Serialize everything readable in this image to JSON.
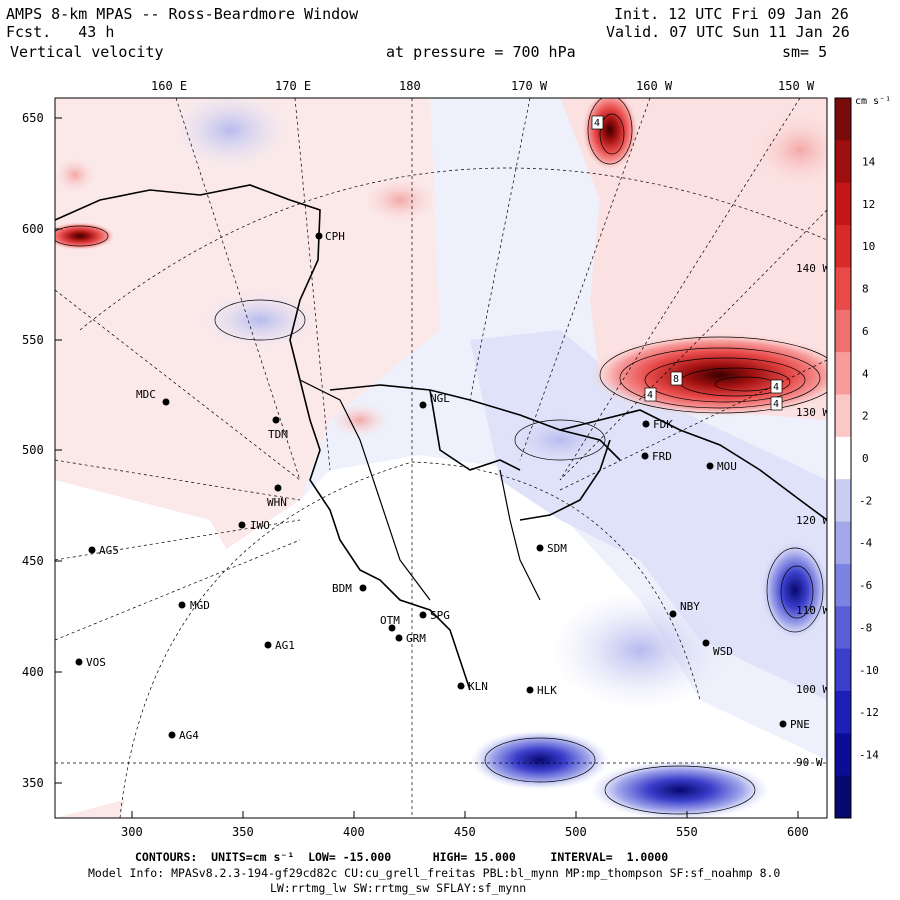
{
  "header": {
    "title": "AMPS 8-km MPAS -- Ross-Beardmore Window",
    "fcst_label": "Fcst.",
    "fcst_value": "43 h",
    "field": "Vertical velocity",
    "init": "Init. 12 UTC Fri 09 Jan 26",
    "valid": "Valid. 07 UTC Sun 11 Jan 26",
    "pressure_label": "at pressure =",
    "pressure_value": "700 hPa",
    "smoothing": "sm= 5"
  },
  "top_axis": [
    "160 E",
    "170 E",
    "180",
    "170 W",
    "160 W",
    "150 W"
  ],
  "left_axis": [
    "650",
    "600",
    "550",
    "500",
    "450",
    "400",
    "350"
  ],
  "bottom_axis": [
    "300",
    "350",
    "400",
    "450",
    "500",
    "550",
    "600"
  ],
  "lon_labels": [
    "140 W",
    "130 W",
    "120 W",
    "110 W",
    "100 W",
    "90 W"
  ],
  "colorbar": {
    "units": "cm s⁻¹",
    "ticks": [
      "14",
      "12",
      "10",
      "8",
      "6",
      "4",
      "2",
      "0",
      "-2",
      "-4",
      "-6",
      "-8",
      "-10",
      "-12",
      "-14"
    ],
    "colors": [
      "#7a0b0b",
      "#9e0f0f",
      "#c41616",
      "#d92a2a",
      "#e84a4a",
      "#f07070",
      "#f79b9b",
      "#fbc7c7",
      "#ffffff",
      "#c9cdf2",
      "#a3a8eb",
      "#7d83e3",
      "#5a5fd8",
      "#3a3ecb",
      "#1c1fb8",
      "#0b0d97",
      "#07086e"
    ]
  },
  "stations": [
    "CPH",
    "MDC",
    "TDM",
    "NGL",
    "FDK",
    "FRD",
    "MOU",
    "WHN",
    "IWO",
    "AG5",
    "SDM",
    "BDM",
    "MGD",
    "OTM",
    "SPG",
    "GRM",
    "NBY",
    "AG1",
    "WSD",
    "VOS",
    "KLN",
    "HLK",
    "PNE",
    "AG4"
  ],
  "contour_labels": [
    "4",
    "8",
    "4",
    "4",
    "4"
  ],
  "footer": {
    "contours": "CONTOURS:  UNITS=cm s⁻¹  LOW= -15.000      HIGH= 15.000     INTERVAL=  1.0000",
    "model_info": "Model Info: MPASv8.2.3-194-gf29cd82c CU:cu_grell_freitas PBL:bl_mynn MP:mp_thompson SF:sf_noahmp 8.0",
    "model_info2": "LW:rrtmg_lw SW:rrtmg_sw SFLAY:sf_mynn"
  }
}
